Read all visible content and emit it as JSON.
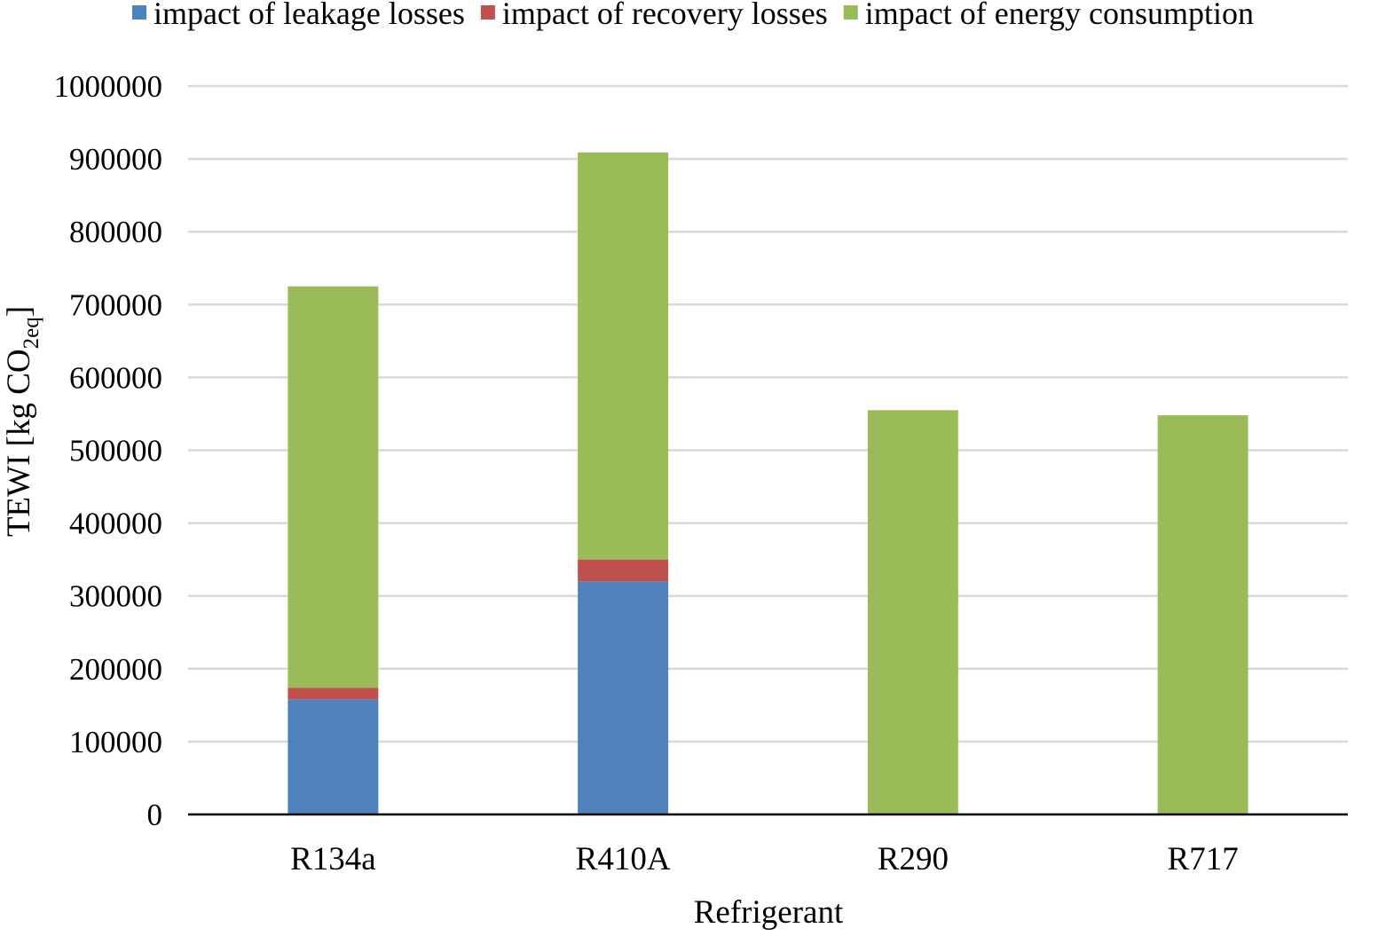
{
  "chart_data": {
    "type": "bar",
    "stacked": true,
    "categories": [
      "R134a",
      "R410A",
      "R290",
      "R717"
    ],
    "series": [
      {
        "name": "impact of leakage losses",
        "color": "#4f81bd",
        "values": [
          158000,
          320000,
          0,
          0
        ]
      },
      {
        "name": "impact of recovery losses",
        "color": "#c0504d",
        "values": [
          16000,
          30000,
          0,
          0
        ]
      },
      {
        "name": "impact of energy consumption",
        "color": "#9bbb59",
        "values": [
          551000,
          559000,
          555000,
          548000
        ]
      }
    ],
    "title": "",
    "xlabel": "Refrigerant",
    "ylabel": {
      "main": "TEWI [kg CO",
      "sub1": "2eq",
      "end": "]"
    },
    "ylim": [
      0,
      1000000
    ],
    "yticks": [
      0,
      100000,
      200000,
      300000,
      400000,
      500000,
      600000,
      700000,
      800000,
      900000,
      1000000
    ],
    "grid": true,
    "legend_position": "top"
  }
}
